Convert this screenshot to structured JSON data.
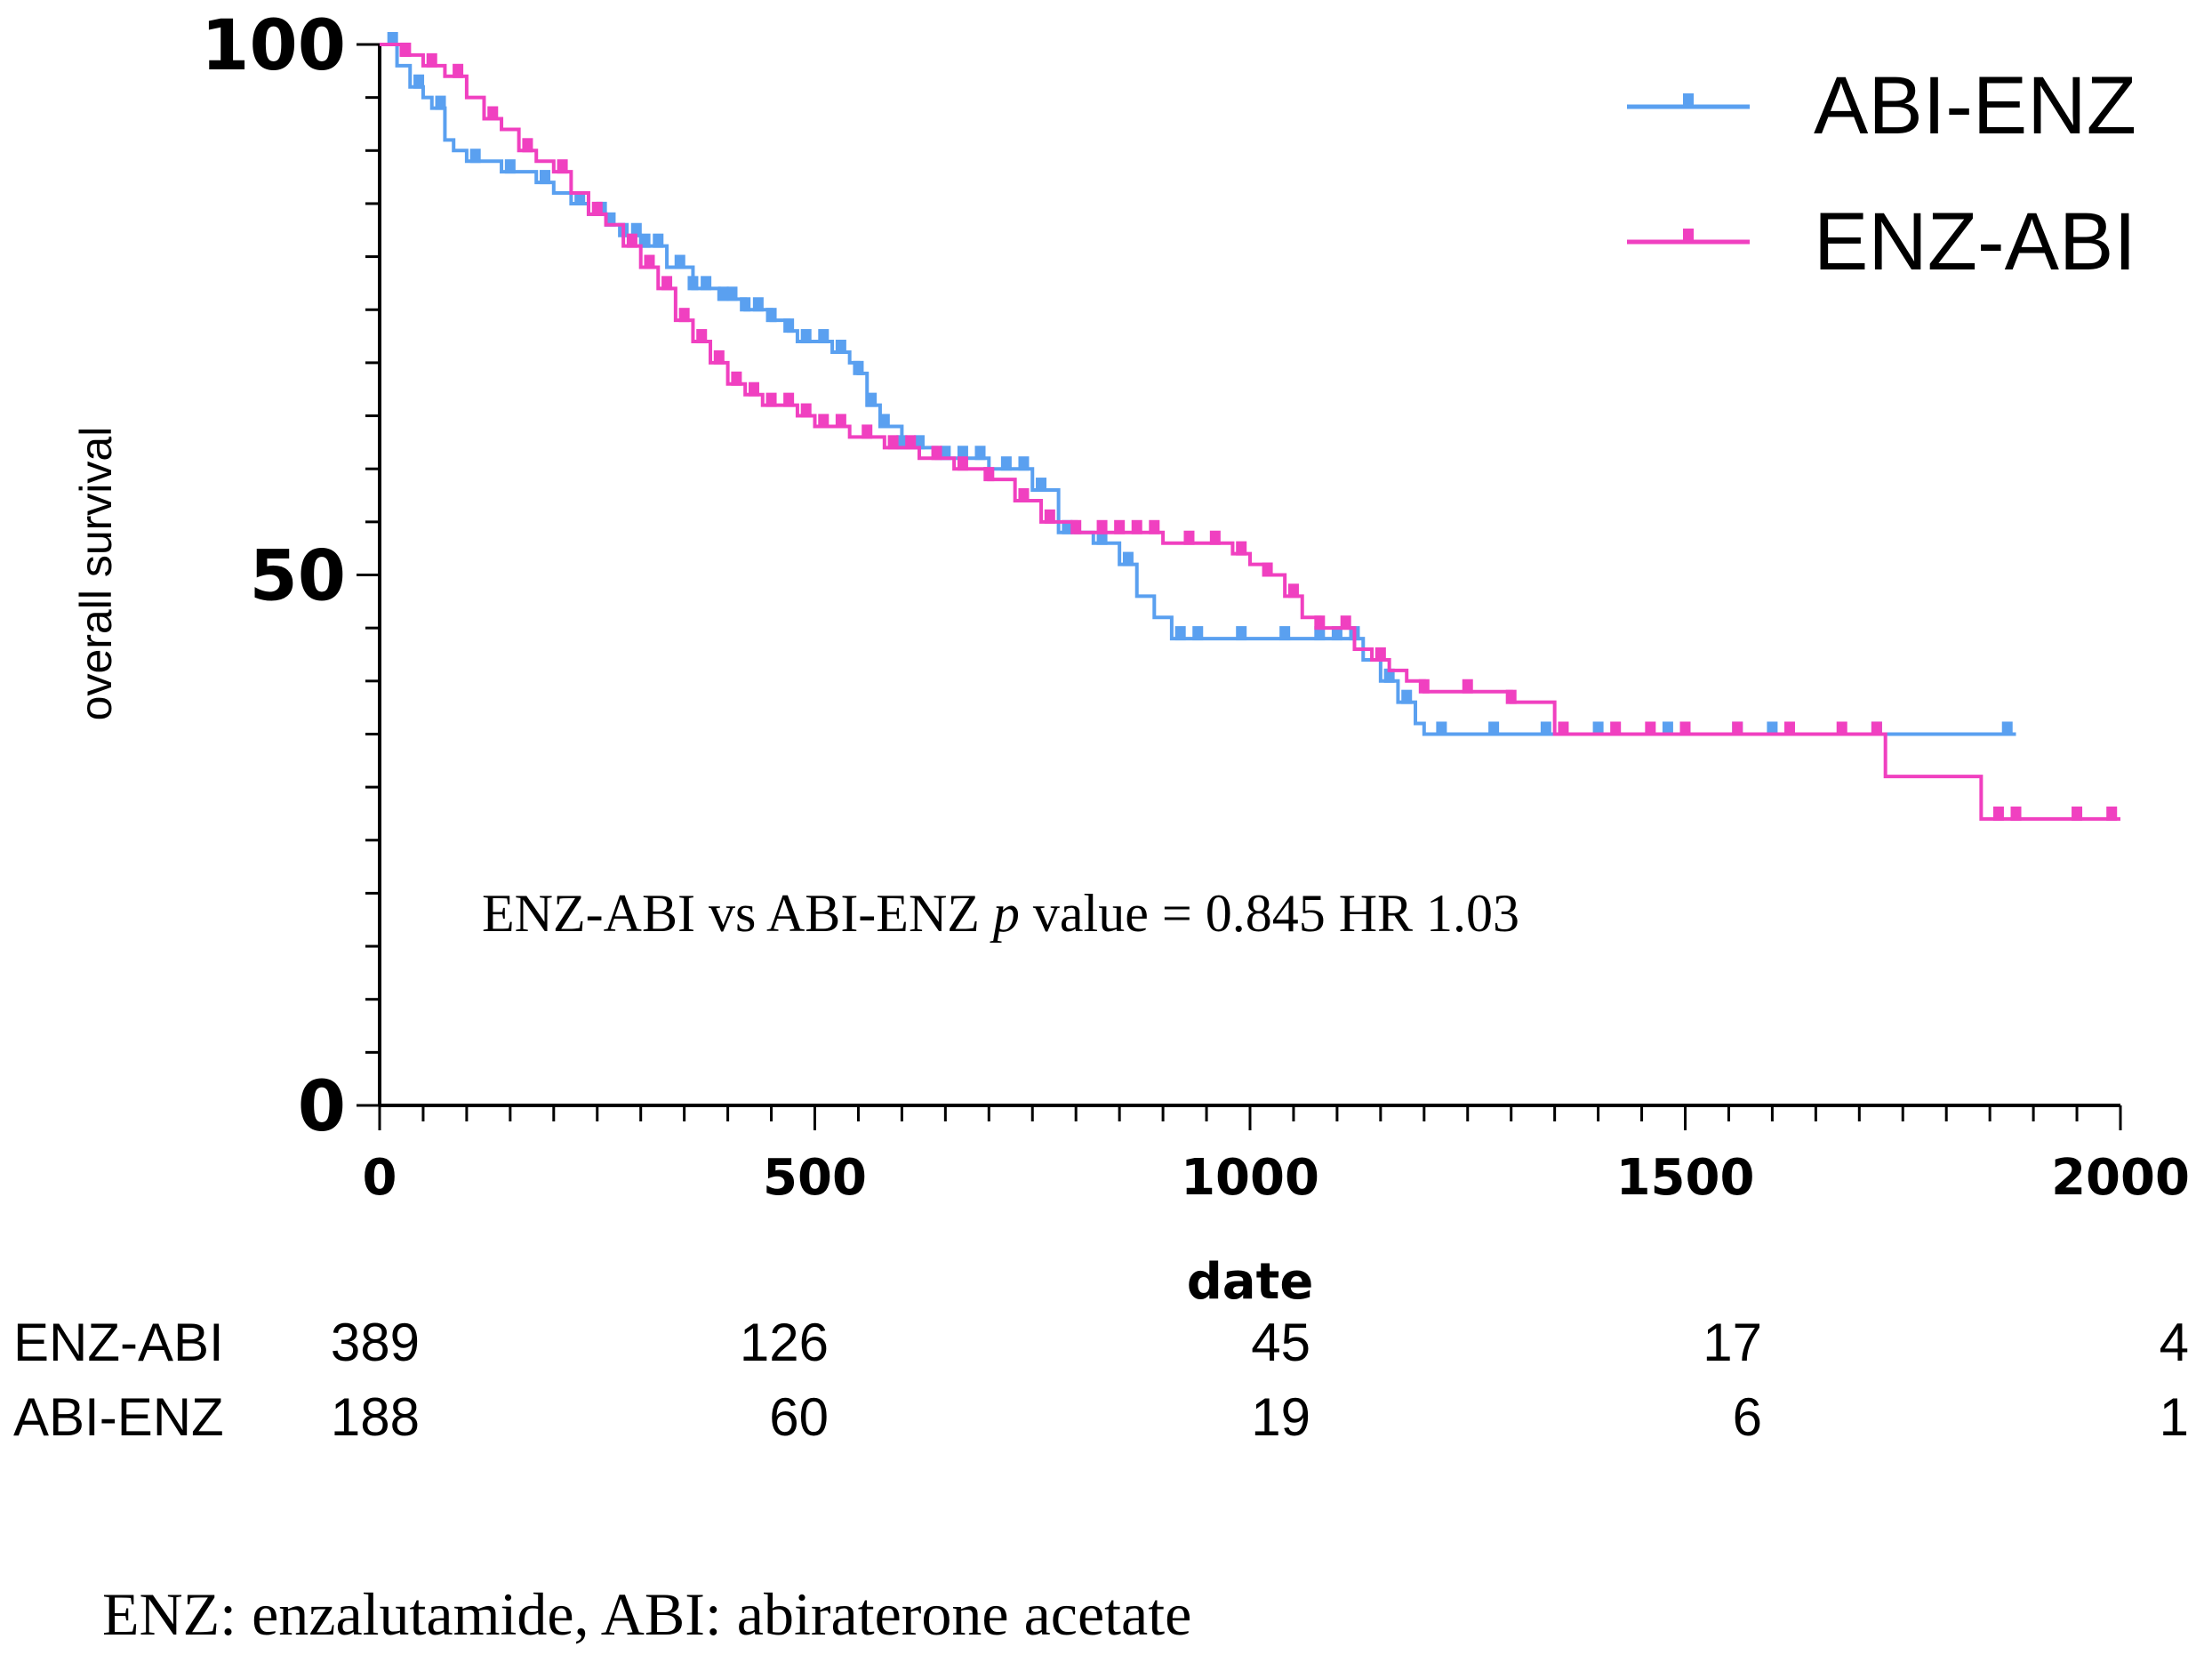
{
  "chart_data": {
    "type": "line",
    "title": "",
    "xlabel": "date",
    "ylabel": "overall survival",
    "xlim": [
      0,
      2000
    ],
    "ylim": [
      0,
      100
    ],
    "x_ticks": [
      0,
      500,
      1000,
      1500,
      2000
    ],
    "x_tick_labels": [
      "0",
      "500",
      "1000",
      "1500",
      "2000"
    ],
    "y_ticks": [
      0,
      50,
      100
    ],
    "y_tick_labels": [
      "0",
      "50",
      "100"
    ],
    "legend_position": "top-right",
    "series": [
      {
        "name": "ABI-ENZ",
        "color": "#5aa0f0",
        "x": [
          0,
          20,
          35,
          50,
          60,
          75,
          85,
          100,
          120,
          140,
          160,
          180,
          200,
          220,
          240,
          260,
          280,
          300,
          330,
          360,
          390,
          420,
          450,
          470,
          480,
          520,
          540,
          550,
          560,
          575,
          600,
          640,
          700,
          750,
          780,
          820,
          850,
          870,
          890,
          910,
          1000,
          1050,
          1100,
          1130,
          1150,
          1170,
          1190,
          1200,
          1300,
          1340,
          1350,
          1500,
          1880
        ],
        "y": [
          100,
          98,
          96,
          95,
          94,
          91,
          90,
          89,
          89,
          88,
          88,
          87,
          86,
          85,
          84,
          83,
          82,
          81,
          79,
          77,
          76,
          75,
          74,
          73,
          72,
          71,
          70,
          69,
          66,
          64,
          62,
          61,
          60,
          58,
          54,
          53,
          51,
          48,
          46,
          44,
          44,
          44,
          44,
          42,
          40,
          38,
          36,
          35,
          35,
          35,
          35,
          35,
          35
        ],
        "censor_x": [
          15,
          45,
          70,
          110,
          150,
          190,
          230,
          255,
          265,
          280,
          295,
          305,
          320,
          345,
          360,
          375,
          395,
          405,
          420,
          435,
          450,
          470,
          490,
          510,
          530,
          550,
          565,
          580,
          600,
          620,
          650,
          670,
          690,
          720,
          740,
          760,
          790,
          830,
          860,
          920,
          940,
          990,
          1040,
          1080,
          1100,
          1120,
          1160,
          1180,
          1220,
          1280,
          1340,
          1400,
          1480,
          1560,
          1600,
          1720,
          1870
        ]
      },
      {
        "name": "ENZ-ABI",
        "color": "#f040c0",
        "x": [
          0,
          25,
          50,
          75,
          100,
          120,
          140,
          160,
          180,
          200,
          220,
          240,
          260,
          280,
          300,
          320,
          340,
          360,
          380,
          400,
          420,
          440,
          460,
          480,
          500,
          540,
          580,
          620,
          660,
          700,
          730,
          760,
          800,
          900,
          980,
          1000,
          1020,
          1040,
          1060,
          1080,
          1100,
          1120,
          1140,
          1160,
          1180,
          1200,
          1300,
          1350,
          1730,
          1840,
          2000
        ],
        "y": [
          100,
          99,
          98,
          97,
          95,
          93,
          92,
          90,
          89,
          88,
          86,
          84,
          83,
          81,
          79,
          77,
          74,
          72,
          70,
          68,
          67,
          66,
          66,
          65,
          64,
          63,
          62,
          61,
          60,
          59,
          57,
          55,
          54,
          53,
          52,
          51,
          50,
          48,
          46,
          45,
          45,
          43,
          42,
          41,
          40,
          39,
          38,
          35,
          31,
          27,
          27
        ],
        "censor_x": [
          30,
          60,
          90,
          130,
          170,
          210,
          250,
          290,
          310,
          330,
          350,
          370,
          390,
          410,
          430,
          450,
          470,
          490,
          510,
          530,
          560,
          590,
          610,
          640,
          670,
          700,
          740,
          770,
          800,
          830,
          850,
          870,
          890,
          930,
          960,
          990,
          1020,
          1050,
          1080,
          1110,
          1150,
          1200,
          1250,
          1300,
          1360,
          1420,
          1460,
          1500,
          1560,
          1620,
          1680,
          1720,
          1860,
          1880,
          1950,
          1990
        ]
      }
    ],
    "annotation": {
      "prefix": "ENZ-ABI  vs ABI-ENZ ",
      "p_symbol": "p",
      "suffix": " value = 0.845 HR  1.03"
    },
    "risk_table": {
      "rows": [
        {
          "label": "ENZ-ABI",
          "values": [
            "389",
            "126",
            "45",
            "17",
            "4"
          ]
        },
        {
          "label": "ABI-ENZ",
          "values": [
            "188",
            "60",
            "19",
            "6",
            "1"
          ]
        }
      ]
    }
  },
  "footnote": "ENZ: enzalutamide,  ABI: abiraterone  acetate"
}
